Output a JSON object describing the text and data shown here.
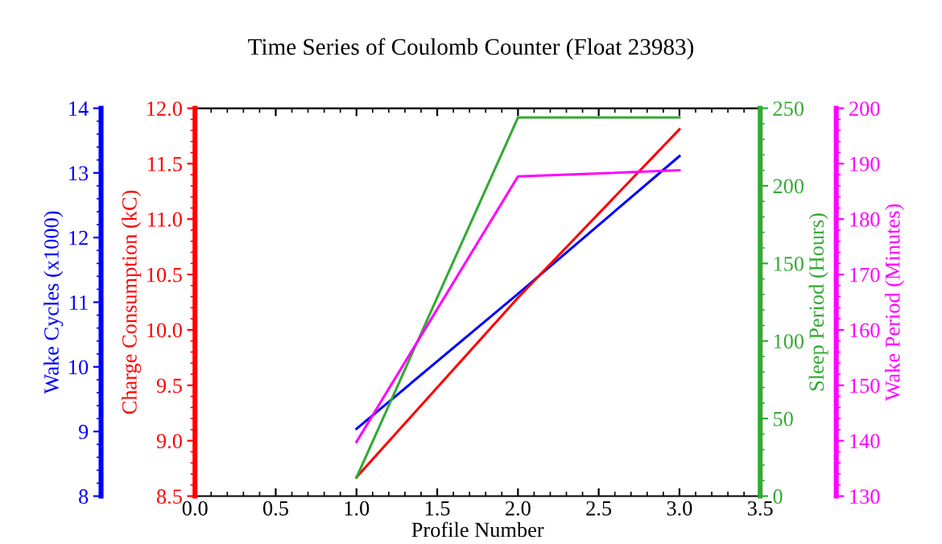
{
  "chart_data": [
    {
      "type": "line",
      "title": "Time Series of Coulomb Counter (Float 23983)",
      "xlabel": "Profile Number",
      "ylabel": "Wake Cycles (x1000)",
      "y2label": "Charge Consumption (kC)",
      "x": [
        1,
        2,
        3
      ],
      "xlim": [
        0,
        3.5
      ],
      "xticks": [
        {
          "value": 0,
          "label": "0.0"
        },
        {
          "value": 0.5,
          "label": "0.5"
        },
        {
          "value": 1,
          "label": "1.0"
        },
        {
          "value": 1.5,
          "label": "1.5"
        },
        {
          "value": 2,
          "label": "2.0"
        },
        {
          "value": 2.5,
          "label": "2.5"
        },
        {
          "value": 3,
          "label": "3.0"
        },
        {
          "value": 3.5,
          "label": "3.5"
        }
      ],
      "ylim": [
        8,
        14
      ],
      "yticks": [
        8,
        9,
        10,
        11,
        12,
        13,
        14
      ],
      "y2lim": [
        8.5,
        12
      ],
      "y2ticks": [
        8.5,
        {
          "value": 9,
          "label": "9.0"
        },
        9.5,
        {
          "value": 10,
          "label": "10.0"
        },
        10.5,
        {
          "value": 11,
          "label": "11.0"
        },
        11.5,
        {
          "value": 12,
          "label": "12.0"
        }
      ],
      "grid": false,
      "series": [
        {
          "axis": "y2",
          "color": "#ff0000",
          "values": [
            8.67,
            10.29,
            11.81
          ]
        },
        {
          "color": "#0000ff",
          "values": [
            9.04,
            11.13,
            13.26
          ]
        }
      ]
    },
    {
      "type": "line",
      "ylabel": "Sleep Period (Hours)",
      "y2label": "Wake Period (Minutes)",
      "tick_labels": "y",
      "x": [
        1,
        2,
        3
      ],
      "xlim": [
        0,
        3.5
      ],
      "ylim": [
        0,
        250
      ],
      "yticks": [
        0,
        50,
        100,
        150,
        200,
        250
      ],
      "y2lim": [
        130,
        200
      ],
      "y2ticks": [
        130,
        140,
        150,
        160,
        170,
        180,
        190,
        200
      ],
      "series": [
        {
          "color": "#33aa33",
          "values": [
            12,
            244,
            244
          ]
        },
        {
          "axis": "y2",
          "color": "#ff00ff",
          "values": [
            139.8,
            187.7,
            188.8
          ]
        }
      ]
    }
  ]
}
